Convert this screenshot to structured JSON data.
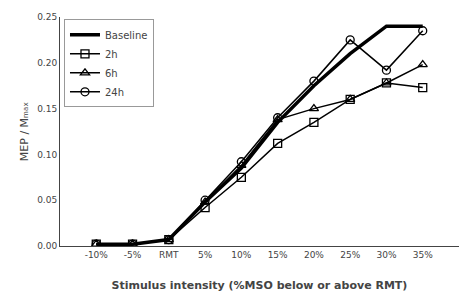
{
  "chart_data": {
    "type": "line",
    "x": [
      -10,
      -5,
      0,
      5,
      10,
      15,
      20,
      25,
      30,
      35
    ],
    "series": [
      {
        "name": "Baseline",
        "color": "#000000",
        "marker": "none",
        "line_style": "solid",
        "values": [
          0.002,
          0.002,
          0.007,
          0.048,
          0.085,
          0.135,
          0.175,
          0.21,
          0.24,
          0.24
        ]
      },
      {
        "name": "2h",
        "color": "#000000",
        "marker": "square",
        "line_style": "solid",
        "values": [
          0.002,
          0.002,
          0.007,
          0.042,
          0.075,
          0.112,
          0.135,
          0.16,
          0.178,
          0.173
        ]
      },
      {
        "name": "6h",
        "color": "#000000",
        "marker": "triangle",
        "line_style": "solid",
        "values": [
          0.002,
          0.002,
          0.007,
          0.048,
          0.088,
          0.138,
          0.15,
          0.16,
          0.178,
          0.198
        ]
      },
      {
        "name": "24h",
        "color": "#000000",
        "marker": "circle",
        "line_style": "solid",
        "values": [
          0.002,
          0.002,
          0.007,
          0.05,
          0.092,
          0.14,
          0.18,
          0.225,
          0.192,
          0.235
        ]
      }
    ],
    "x_label": "Stimulus intensity (%MSO below or above RMT)",
    "y_label": "MEP / Mₘₐₓ",
    "xlim": [
      -15,
      40
    ],
    "xticks": [
      {
        "value": -10,
        "label": "-10%"
      },
      {
        "value": -5,
        "label": "-5%"
      },
      {
        "value": 0,
        "label": "RMT"
      },
      {
        "value": 5,
        "label": "5%"
      },
      {
        "value": 10,
        "label": "10%"
      },
      {
        "value": 15,
        "label": "15%"
      },
      {
        "value": 20,
        "label": "20%"
      },
      {
        "value": 25,
        "label": "25%"
      },
      {
        "value": 30,
        "label": "30%"
      },
      {
        "value": 35,
        "label": "35%"
      }
    ],
    "ylim": [
      0,
      0.25
    ],
    "yticks": [
      {
        "value": 0,
        "label": "0.00"
      },
      0.05,
      {
        "value": 0.1,
        "label": "0.10"
      },
      0.15,
      {
        "value": 0.2,
        "label": "0.20"
      },
      0.25
    ],
    "grid": false,
    "legend": "upper left"
  }
}
